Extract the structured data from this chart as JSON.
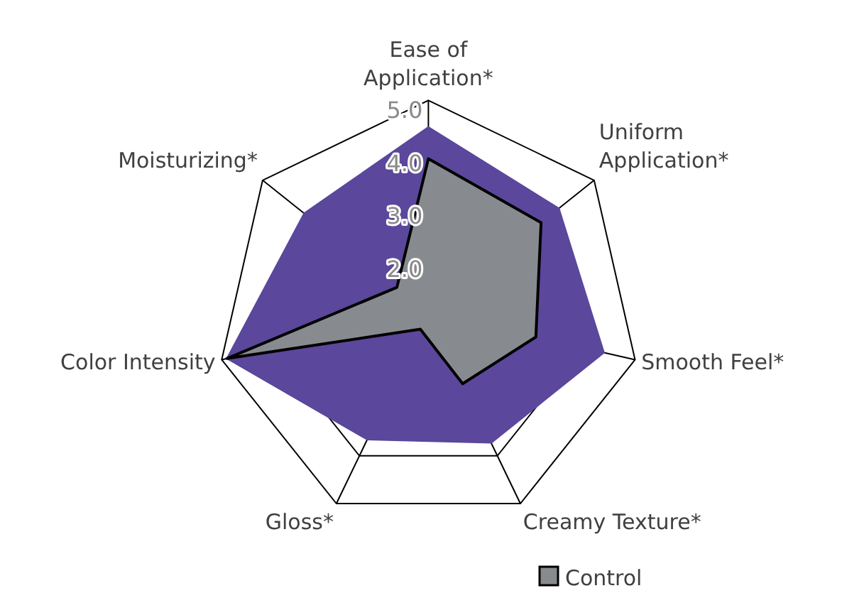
{
  "chart_data": {
    "type": "radar",
    "categories": [
      "Ease of Application*",
      "Uniform Application*",
      "Smooth Feel*",
      "Creamy Texture*",
      "Gloss*",
      "Color Intensity",
      "Moisturizing*"
    ],
    "ylim": [
      1,
      5
    ],
    "yticks": [
      {
        "value": 2,
        "label": "2.0"
      },
      {
        "value": 3,
        "label": "3.0"
      },
      {
        "value": 4,
        "label": "4.0"
      },
      {
        "value": 5,
        "label": "5.0"
      }
    ],
    "grid": true,
    "legend": "bottom",
    "series": [
      {
        "color": "#5b479b",
        "values": [
          4.5,
          4.15,
          4.4,
          3.73,
          3.66,
          4.9,
          4.0
        ]
      },
      {
        "name": "Control",
        "color": "#878b8f",
        "values": [
          3.9,
          3.72,
          3.08,
          2.49,
          1.35,
          4.9,
          1.76
        ]
      }
    ]
  }
}
